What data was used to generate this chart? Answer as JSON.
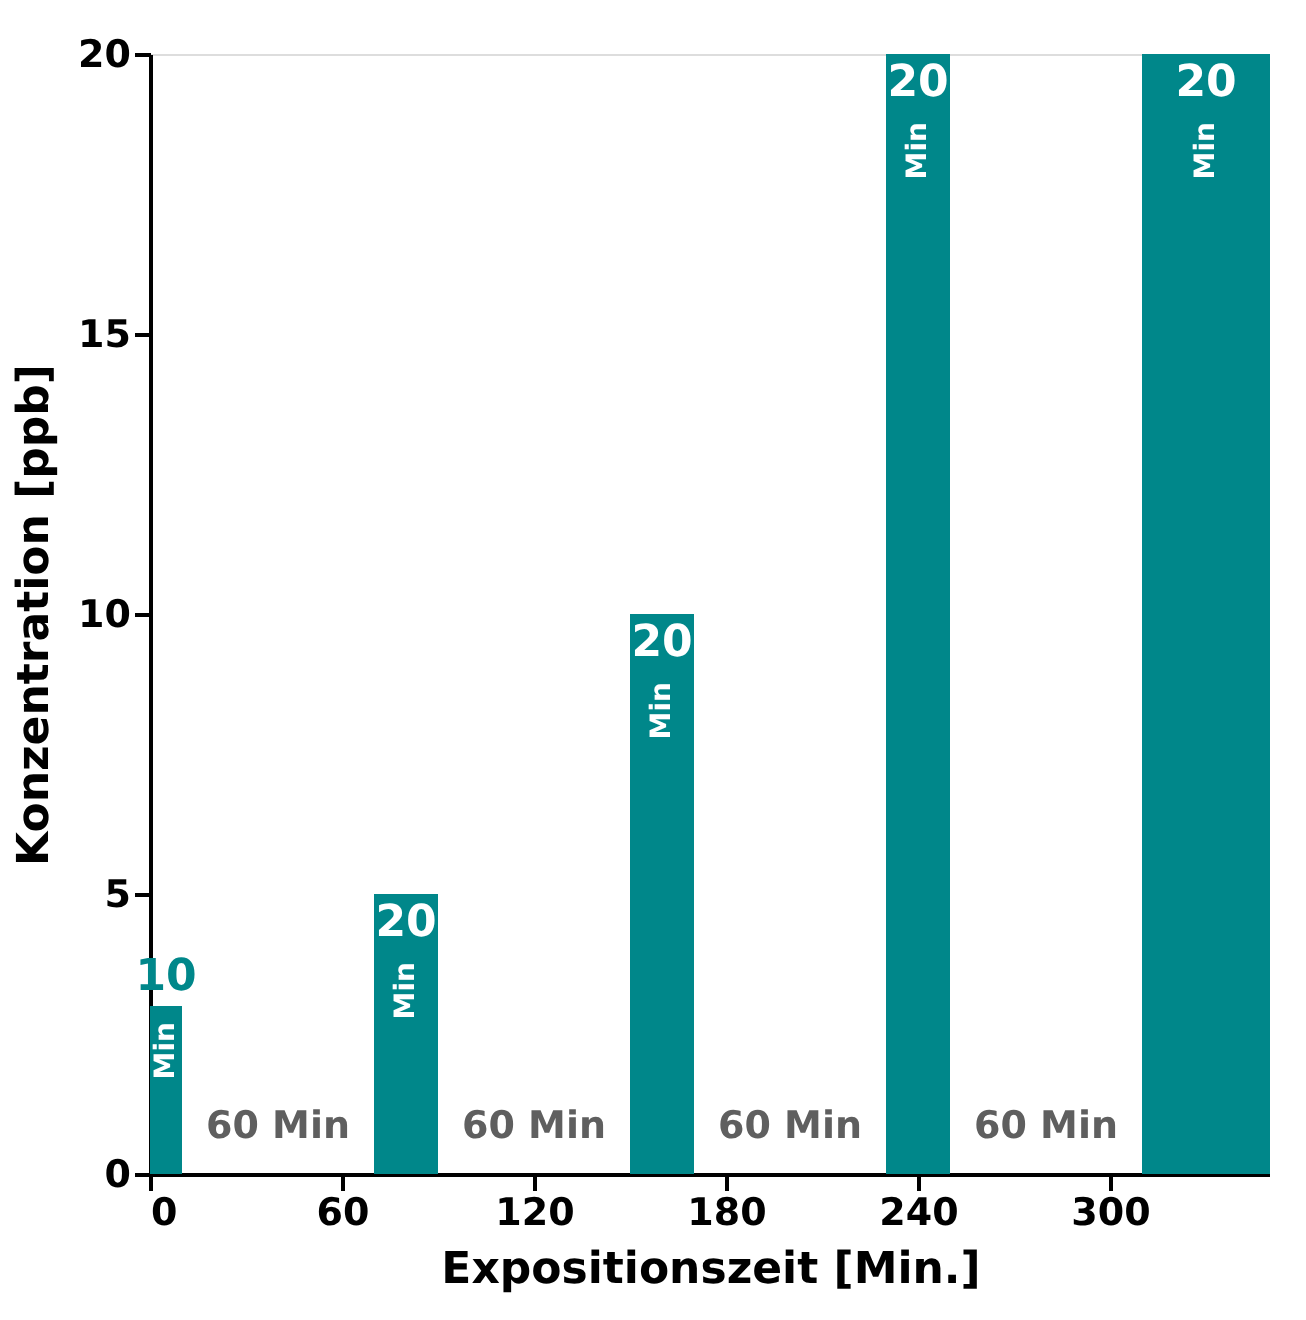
{
  "chart_data": {
    "type": "histogram",
    "xlabel": "Expositionszeit [Min.]",
    "ylabel": "Konzentration [ppb]",
    "bins": [
      0,
      10,
      70,
      90,
      150,
      170,
      230,
      250,
      310,
      350
    ],
    "values": [
      3,
      0,
      5,
      0,
      10,
      0,
      20,
      0,
      20
    ],
    "color": "#00878a",
    "xlim": [
      0,
      350
    ],
    "xticks": [
      0,
      60,
      120,
      180,
      240,
      300
    ],
    "ylim": [
      0,
      20
    ],
    "yticks": [
      0,
      5,
      10,
      15,
      20
    ],
    "grid": false,
    "annotations": [
      {
        "text": "10",
        "x": 5,
        "y": 3
      },
      {
        "text": "Min",
        "x": 5,
        "y": 3
      },
      {
        "text": "20",
        "x": 80,
        "y": 5
      },
      {
        "text": "Min",
        "x": 80,
        "y": 5
      },
      {
        "text": "20",
        "x": 160,
        "y": 10
      },
      {
        "text": "Min",
        "x": 160,
        "y": 10
      },
      {
        "text": "20",
        "x": 240,
        "y": 20
      },
      {
        "text": "Min",
        "x": 240,
        "y": 20
      },
      {
        "text": "20",
        "x": 330,
        "y": 20
      },
      {
        "text": "Min",
        "x": 330,
        "y": 20
      },
      "60 Min",
      "60 Min",
      "60 Min",
      "60 Min"
    ]
  }
}
